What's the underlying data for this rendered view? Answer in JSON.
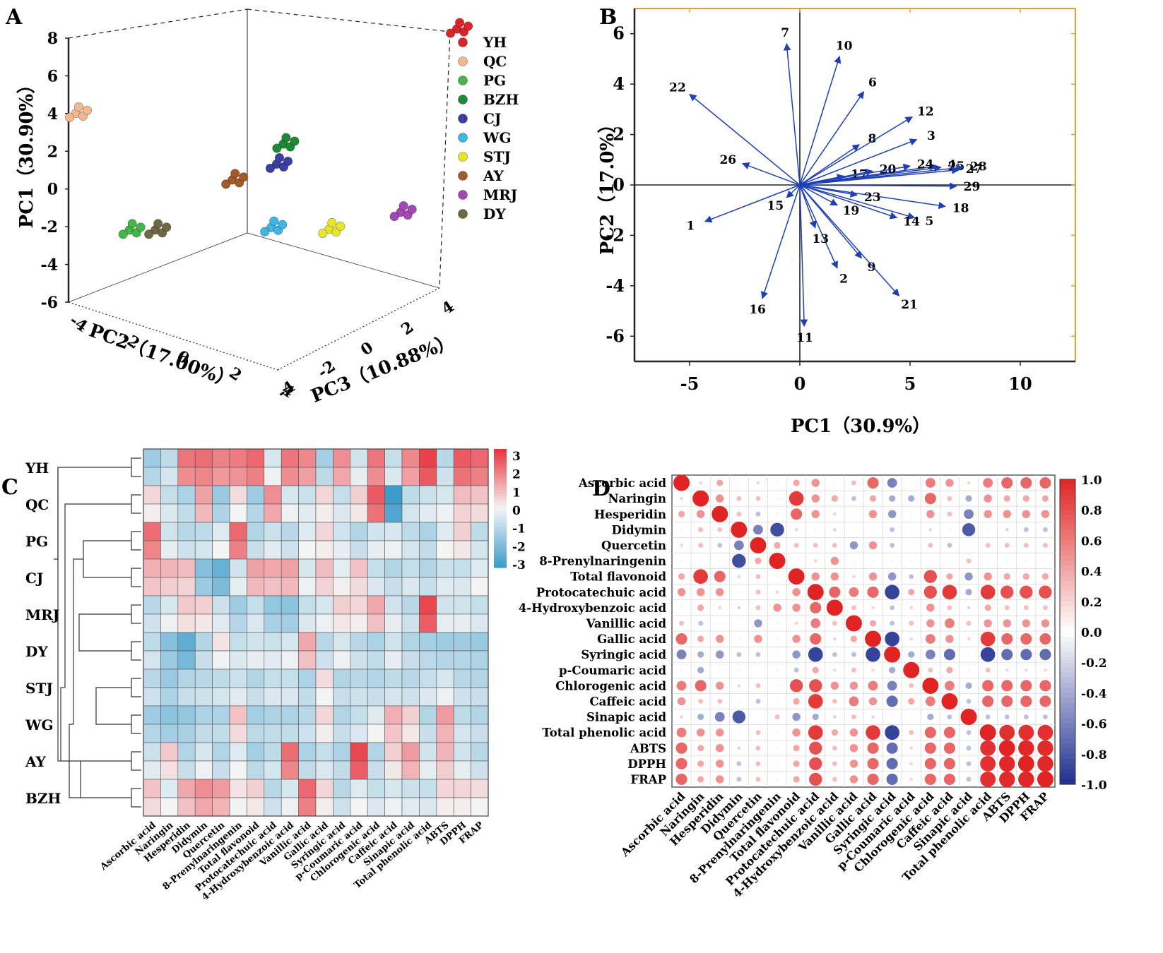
{
  "chart_data": [
    {
      "panel": "A",
      "type": "scatter3d",
      "axes": {
        "pc1": {
          "label": "PC1（30.90%）",
          "ticks": [
            8,
            6,
            4,
            2,
            0,
            -2,
            -4,
            -6
          ]
        },
        "pc2": {
          "label": "PC2（17.00%）",
          "ticks": [
            -4,
            -2,
            0,
            2,
            4
          ]
        },
        "pc3": {
          "label": "PC3（10.88%）",
          "ticks": [
            -4,
            -2,
            0,
            2,
            4
          ]
        }
      },
      "legend": [
        {
          "name": "YH",
          "color": "#d9262b"
        },
        {
          "name": "QC",
          "color": "#f2b890"
        },
        {
          "name": "PG",
          "color": "#45b54a"
        },
        {
          "name": "BZH",
          "color": "#1f8a36"
        },
        {
          "name": "CJ",
          "color": "#3b3fa1"
        },
        {
          "name": "WG",
          "color": "#3fb6e3"
        },
        {
          "name": "STJ",
          "color": "#e8e62a"
        },
        {
          "name": "AY",
          "color": "#a45a2a"
        },
        {
          "name": "MRJ",
          "color": "#a548b6"
        },
        {
          "name": "DY",
          "color": "#6e6843"
        }
      ],
      "groups": [
        {
          "name": "YH",
          "pc1": 7.5,
          "pc2": 4.2,
          "pc3": 4.6
        },
        {
          "name": "QC",
          "pc1": 2.9,
          "pc2": -4.8,
          "pc3": -2.6
        },
        {
          "name": "PG",
          "pc1": -2.2,
          "pc2": -2.6,
          "pc3": -2.8
        },
        {
          "name": "BZH",
          "pc1": 1.8,
          "pc2": 0.5,
          "pc3": 0.8
        },
        {
          "name": "CJ",
          "pc1": 0.8,
          "pc2": 0.4,
          "pc3": 0.6
        },
        {
          "name": "WG",
          "pc1": -2.3,
          "pc2": 0.5,
          "pc3": 0.2
        },
        {
          "name": "STJ",
          "pc1": -2.1,
          "pc2": 2.1,
          "pc3": 1.0
        },
        {
          "name": "AY",
          "pc1": 0.0,
          "pc2": -0.6,
          "pc3": -0.3
        },
        {
          "name": "MRJ",
          "pc1": -1.4,
          "pc2": 3.6,
          "pc3": 2.6
        },
        {
          "name": "DY",
          "pc1": -2.2,
          "pc2": -2.0,
          "pc3": -2.3
        }
      ]
    },
    {
      "panel": "B",
      "type": "biplot",
      "xlabel": "PC1（30.9%）",
      "ylabel": "PC2（17.0%）",
      "xlim": [
        -7.5,
        12.5
      ],
      "ylim": [
        -7,
        7
      ],
      "xticks": [
        -5,
        0,
        5,
        10
      ],
      "yticks": [
        6,
        4,
        2,
        0,
        -2,
        -4,
        -6
      ],
      "vectors": [
        {
          "label": "1",
          "x": -4.3,
          "y": -1.45
        },
        {
          "label": "2",
          "x": 1.7,
          "y": -3.3
        },
        {
          "label": "3",
          "x": 5.3,
          "y": 1.8
        },
        {
          "label": "4",
          "x": 6.2,
          "y": 0.75
        },
        {
          "label": "5",
          "x": 5.2,
          "y": -1.3
        },
        {
          "label": "6",
          "x": 2.9,
          "y": 3.7
        },
        {
          "label": "7",
          "x": -0.6,
          "y": 5.6
        },
        {
          "label": "8",
          "x": 2.7,
          "y": 1.6
        },
        {
          "label": "9",
          "x": 2.8,
          "y": -2.9
        },
        {
          "label": "10",
          "x": 1.8,
          "y": 5.1
        },
        {
          "label": "11",
          "x": 0.2,
          "y": -5.6
        },
        {
          "label": "12",
          "x": 5.1,
          "y": 2.7
        },
        {
          "label": "13",
          "x": 0.7,
          "y": -1.7
        },
        {
          "label": "14",
          "x": 4.4,
          "y": -1.3
        },
        {
          "label": "15",
          "x": -0.6,
          "y": -0.5
        },
        {
          "label": "16",
          "x": -1.7,
          "y": -4.5
        },
        {
          "label": "17",
          "x": 2.0,
          "y": 0.35
        },
        {
          "label": "18",
          "x": 6.6,
          "y": -0.85
        },
        {
          "label": "19",
          "x": 1.7,
          "y": -0.8
        },
        {
          "label": "20",
          "x": 3.3,
          "y": 0.55
        },
        {
          "label": "21",
          "x": 4.5,
          "y": -4.4
        },
        {
          "label": "22",
          "x": -5.0,
          "y": 3.6
        },
        {
          "label": "23",
          "x": 2.6,
          "y": -0.4
        },
        {
          "label": "24",
          "x": 5.0,
          "y": 0.75
        },
        {
          "label": "25",
          "x": 6.4,
          "y": 0.7
        },
        {
          "label": "26",
          "x": -2.6,
          "y": 0.85
        },
        {
          "label": "27",
          "x": 7.2,
          "y": 0.6
        },
        {
          "label": "28",
          "x": 7.4,
          "y": 0.7
        },
        {
          "label": "29",
          "x": 7.1,
          "y": -0.05
        }
      ]
    },
    {
      "panel": "C",
      "type": "heatmap",
      "rows": [
        "YH",
        "QC",
        "PG",
        "CJ",
        "MRJ",
        "DY",
        "STJ",
        "WG",
        "AY",
        "BZH"
      ],
      "columns": [
        "Ascorbic acid",
        "Naringin",
        "Hesperidin",
        "Didymin",
        "Quercetin",
        "8-Prenylnaringenin",
        "Total flavonoid",
        "Protocatechuic acid",
        "4-Hydroxybenzoic acid",
        "Vanillic acid",
        "Gallic acid",
        "Syringic acid",
        "p-Coumaric acid",
        "Chlorogenic acid",
        "Caffeic acid",
        "Sinapic acid",
        "Total phenolic acid",
        "ABTS",
        "DPPH",
        "FRAP"
      ],
      "color_scale": {
        "min": -3,
        "max": 3,
        "ticks": [
          "3",
          "2",
          "1",
          "0",
          "-1",
          "-2",
          "-3"
        ],
        "low": "#3a9bcc",
        "mid": "#f5f5f5",
        "high": "#e8323c"
      },
      "values": [
        [
          -1.2,
          -0.7,
          1.8,
          1.9,
          1.6,
          1.7,
          2.0,
          -0.3,
          1.8,
          1.5,
          -1.1,
          1.4,
          -0.4,
          1.8,
          -0.6,
          1.5,
          2.6,
          -0.8,
          2.2,
          2.0
        ],
        [
          0.3,
          -0.6,
          -1.0,
          1.1,
          -1.3,
          0.2,
          -1.2,
          1.4,
          -0.3,
          -0.5,
          0.3,
          -0.6,
          0.4,
          2.2,
          -2.8,
          -0.7,
          -0.5,
          -0.3,
          0.7,
          0.6
        ],
        [
          1.9,
          -0.4,
          -0.8,
          -0.7,
          -0.2,
          2.0,
          -0.9,
          -0.5,
          -0.8,
          -0.2,
          0.3,
          -0.4,
          -0.9,
          -0.4,
          -0.3,
          -0.7,
          -1.0,
          -0.2,
          0.4,
          -0.7
        ],
        [
          0.9,
          0.8,
          0.7,
          -1.6,
          -2.1,
          -0.4,
          1.1,
          1.0,
          1.1,
          -0.3,
          0.7,
          -0.1,
          0.6,
          -0.6,
          -0.9,
          -0.6,
          -0.9,
          -0.5,
          -0.6,
          -0.2
        ],
        [
          -0.8,
          -0.3,
          0.5,
          0.4,
          -0.5,
          -1.2,
          -0.6,
          -1.4,
          -1.5,
          -0.6,
          -0.3,
          0.4,
          0.3,
          1.0,
          -0.4,
          -0.8,
          2.5,
          -0.4,
          -0.4,
          -0.6
        ],
        [
          -0.7,
          -1.6,
          -2.2,
          -0.9,
          0.1,
          -0.6,
          -0.4,
          -0.5,
          -0.3,
          1.0,
          -0.8,
          -0.3,
          -0.8,
          -1.0,
          -0.4,
          -0.9,
          -1.1,
          -1.2,
          -1.2,
          -1.3
        ],
        [
          -0.8,
          -1.3,
          -0.9,
          -0.8,
          -0.7,
          -0.5,
          -0.9,
          -0.6,
          -0.6,
          -1.0,
          0.2,
          -0.9,
          -0.8,
          -0.9,
          -0.7,
          -0.8,
          -0.6,
          -0.3,
          -0.8,
          -0.9
        ],
        [
          -1.2,
          -1.5,
          -1.4,
          -1.0,
          -1.0,
          0.6,
          -1.1,
          -1.0,
          -1.0,
          -0.8,
          0.3,
          -0.9,
          -0.6,
          -0.2,
          0.9,
          0.4,
          -0.9,
          1.2,
          -0.7,
          -0.9
        ],
        [
          -0.5,
          0.5,
          -0.9,
          -0.3,
          -0.9,
          -0.2,
          -1.1,
          -0.7,
          1.9,
          -1.0,
          -0.6,
          -1.0,
          2.5,
          -0.9,
          0.4,
          1.2,
          -0.4,
          0.8,
          -0.4,
          -0.8
        ],
        [
          0.6,
          -0.2,
          1.0,
          1.4,
          1.2,
          0.1,
          0.4,
          -0.8,
          -0.3,
          2.0,
          0.3,
          -0.8,
          -0.2,
          -0.6,
          -0.3,
          -0.5,
          -0.6,
          0.3,
          0.3,
          0.2
        ]
      ],
      "dendrogram": "hierarchical clustering of rows"
    },
    {
      "panel": "D",
      "type": "correlation",
      "variables": [
        "Ascorbic acid",
        "Naringin",
        "Hesperidin",
        "Didymin",
        "Quercetin",
        "8-Prenylnaringenin",
        "Total flavonoid",
        "Protocatechuic acid",
        "4-Hydroxybenzoic acid",
        "Vanillic acid",
        "Gallic acid",
        "Syringic acid",
        "p-Coumaric acid",
        "Chlorogenic acid",
        "Caffeic acid",
        "Sinapic acid",
        "Total phenolic acid",
        "ABTS",
        "DPPH",
        "FRAP"
      ],
      "color_scale": {
        "min": -1.0,
        "max": 1.0,
        "ticks": [
          "1.0",
          "0.8",
          "0.6",
          "0.4",
          "0.2",
          "0.0",
          "-0.2",
          "-0.4",
          "-0.6",
          "-0.8",
          "-1.0"
        ],
        "low": "#1f2f8f",
        "mid": "#ffffff",
        "high": "#e02424"
      },
      "matrix": [
        [
          1.0,
          0.2,
          0.4,
          0.1,
          0.2,
          0.1,
          0.4,
          0.5,
          0.1,
          0.3,
          0.7,
          -0.6,
          0.1,
          0.6,
          0.5,
          0.2,
          0.6,
          0.7,
          0.7,
          0.7
        ],
        [
          0.2,
          1.0,
          0.5,
          0.3,
          0.3,
          0.1,
          0.9,
          0.5,
          0.4,
          -0.3,
          0.4,
          -0.4,
          -0.4,
          0.7,
          0.3,
          -0.4,
          0.5,
          0.4,
          0.4,
          0.4
        ],
        [
          0.4,
          0.5,
          1.0,
          0.3,
          -0.3,
          -0.1,
          0.7,
          0.5,
          0.2,
          0.1,
          0.5,
          -0.5,
          0.1,
          0.5,
          0.3,
          -0.6,
          0.5,
          0.5,
          0.5,
          0.5
        ],
        [
          0.1,
          0.3,
          0.3,
          1.0,
          -0.6,
          -0.85,
          0.2,
          0.1,
          -0.2,
          0.0,
          0.1,
          -0.3,
          0.1,
          0.2,
          0.1,
          -0.8,
          0.1,
          -0.2,
          -0.3,
          -0.3
        ],
        [
          0.2,
          0.3,
          -0.3,
          -0.6,
          1.0,
          0.4,
          0.3,
          0.3,
          0.3,
          -0.5,
          0.5,
          -0.3,
          0.0,
          0.3,
          -0.3,
          0.0,
          0.3,
          0.3,
          0.3,
          0.3
        ],
        [
          0.1,
          0.1,
          -0.1,
          -0.85,
          0.4,
          1.0,
          0.1,
          0.2,
          0.5,
          0.1,
          0.1,
          0.1,
          -0.1,
          0.1,
          0.1,
          0.3,
          0.1,
          0.1,
          0.1,
          0.1
        ],
        [
          0.4,
          0.9,
          0.7,
          0.2,
          0.3,
          0.1,
          1.0,
          0.5,
          0.5,
          0.2,
          0.5,
          -0.5,
          -0.3,
          0.8,
          0.4,
          -0.5,
          0.5,
          0.4,
          0.4,
          0.4
        ],
        [
          0.5,
          0.5,
          0.5,
          0.1,
          0.3,
          0.2,
          0.5,
          1.0,
          0.7,
          0.6,
          0.7,
          -0.9,
          0.4,
          0.8,
          0.9,
          -0.4,
          0.9,
          0.8,
          0.8,
          0.8
        ],
        [
          0.1,
          0.4,
          0.2,
          -0.2,
          0.3,
          0.5,
          0.5,
          0.7,
          1.0,
          0.3,
          0.2,
          -0.3,
          0.2,
          0.5,
          0.3,
          -0.2,
          0.4,
          0.3,
          0.3,
          0.3
        ],
        [
          0.3,
          -0.3,
          0.1,
          0.0,
          -0.5,
          0.1,
          0.2,
          0.6,
          0.3,
          1.0,
          0.4,
          -0.3,
          0.3,
          0.5,
          0.6,
          0.3,
          0.5,
          0.5,
          0.5,
          0.5
        ],
        [
          0.7,
          0.4,
          0.5,
          0.1,
          0.5,
          0.1,
          0.5,
          0.7,
          0.2,
          0.4,
          1.0,
          -0.9,
          0.2,
          0.6,
          0.5,
          0.2,
          0.9,
          0.7,
          0.7,
          0.7
        ],
        [
          -0.6,
          -0.4,
          -0.5,
          -0.3,
          -0.3,
          0.1,
          -0.5,
          -0.9,
          -0.3,
          -0.3,
          -0.9,
          1.0,
          -0.4,
          -0.6,
          -0.7,
          0.1,
          -0.9,
          -0.7,
          -0.7,
          -0.7
        ],
        [
          0.1,
          -0.4,
          0.1,
          0.1,
          0.0,
          -0.1,
          -0.3,
          0.4,
          0.2,
          0.3,
          0.2,
          -0.4,
          1.0,
          0.3,
          0.4,
          0.1,
          0.3,
          0.2,
          0.2,
          0.2
        ],
        [
          0.6,
          0.7,
          0.5,
          0.2,
          0.3,
          0.1,
          0.8,
          0.8,
          0.5,
          0.5,
          0.6,
          -0.6,
          0.3,
          1.0,
          0.6,
          -0.4,
          0.7,
          0.7,
          0.7,
          0.7
        ],
        [
          0.5,
          0.3,
          0.3,
          0.1,
          -0.3,
          0.1,
          0.4,
          0.9,
          0.3,
          0.6,
          0.5,
          -0.7,
          0.4,
          0.6,
          1.0,
          -0.3,
          0.7,
          0.7,
          0.7,
          0.7
        ],
        [
          0.2,
          -0.4,
          -0.6,
          -0.8,
          0.0,
          0.3,
          -0.5,
          -0.4,
          -0.2,
          0.3,
          0.2,
          0.1,
          0.1,
          -0.4,
          -0.3,
          1.0,
          -0.3,
          -0.3,
          -0.3,
          -0.3
        ],
        [
          0.6,
          0.5,
          0.5,
          0.1,
          0.3,
          0.1,
          0.5,
          0.9,
          0.4,
          0.5,
          0.9,
          -0.9,
          0.3,
          0.7,
          0.7,
          -0.3,
          1.0,
          0.95,
          0.95,
          0.95
        ],
        [
          0.7,
          0.4,
          0.5,
          -0.2,
          0.3,
          0.1,
          0.4,
          0.8,
          0.3,
          0.5,
          0.7,
          -0.7,
          0.2,
          0.7,
          0.7,
          -0.3,
          0.95,
          1.0,
          0.98,
          0.97
        ],
        [
          0.7,
          0.4,
          0.5,
          -0.3,
          0.3,
          0.1,
          0.4,
          0.8,
          0.3,
          0.5,
          0.7,
          -0.7,
          0.2,
          0.7,
          0.7,
          -0.3,
          0.95,
          0.98,
          1.0,
          0.98
        ],
        [
          0.7,
          0.4,
          0.5,
          -0.3,
          0.3,
          0.1,
          0.4,
          0.8,
          0.3,
          0.5,
          0.7,
          -0.7,
          0.2,
          0.7,
          0.7,
          -0.3,
          0.95,
          0.97,
          0.98,
          1.0
        ]
      ]
    }
  ],
  "panel_labels": {
    "a": "A",
    "b": "B",
    "c": "C",
    "d": "D"
  }
}
